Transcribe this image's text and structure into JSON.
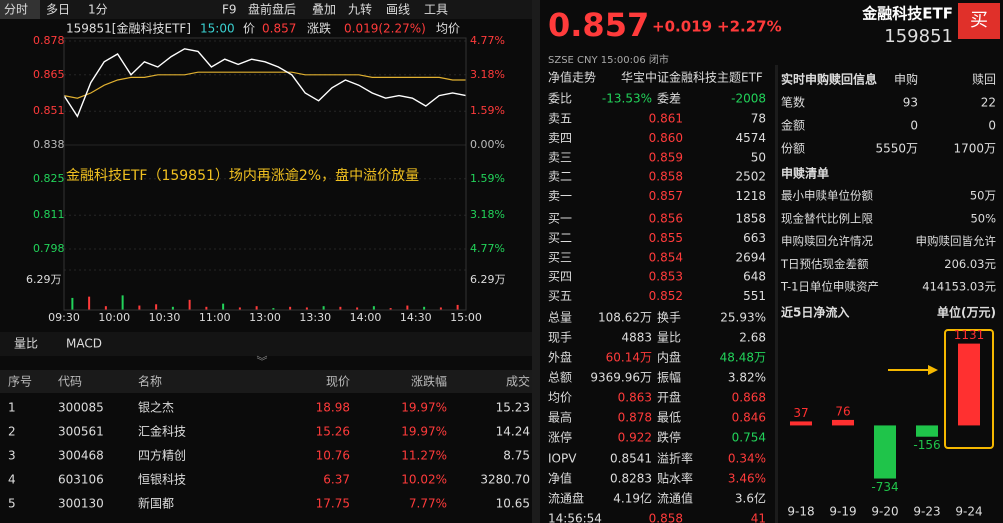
{
  "toolbar": [
    "分时",
    "多日",
    "1分",
    "F9",
    "盘前盘后",
    "叠加",
    "九转",
    "画线",
    "工具"
  ],
  "chart": {
    "type": "line",
    "code_name": "159851[金融科技ETF]",
    "time": "15:00",
    "price_label": "价",
    "price": "0.857",
    "change_label": "涨跌",
    "change": "0.019(2.27%)",
    "avg_label": "均价",
    "ylim": [
      0.798,
      0.878
    ],
    "yticks": [
      0.878,
      0.865,
      0.851,
      0.838,
      0.825,
      0.811,
      0.798
    ],
    "pct_ticks": [
      "4.77%",
      "3.18%",
      "1.59%",
      "0.00%",
      "1.59%",
      "3.18%",
      "4.77%"
    ],
    "volume_max": {
      "value": 6.29,
      "label": "6.29万"
    },
    "xticks": [
      "09:30",
      "10:00",
      "10:30",
      "11:00",
      "13:00",
      "13:30",
      "14:00",
      "14:30",
      "15:00"
    ],
    "annotation": "金融科技ETF（159851）场内再涨逾2%，盘中溢价放量",
    "price_series": [
      0.857,
      0.849,
      0.862,
      0.87,
      0.873,
      0.865,
      0.87,
      0.868,
      0.872,
      0.875,
      0.874,
      0.868,
      0.871,
      0.869,
      0.871,
      0.87,
      0.868,
      0.865,
      0.858,
      0.855,
      0.86,
      0.863,
      0.861,
      0.858,
      0.856,
      0.857,
      0.856,
      0.853,
      0.857,
      0.858,
      0.857
    ],
    "avg_series": [
      0.857,
      0.856,
      0.858,
      0.861,
      0.863,
      0.864,
      0.864,
      0.865,
      0.865,
      0.865,
      0.866,
      0.866,
      0.866,
      0.866,
      0.866,
      0.866,
      0.866,
      0.866,
      0.865,
      0.865,
      0.865,
      0.865,
      0.865,
      0.864,
      0.864,
      0.864,
      0.864,
      0.864,
      0.864,
      0.863,
      0.863
    ],
    "volume": [
      1.9,
      2.1,
      0.6,
      2.3,
      0.7,
      0.9,
      0.5,
      1.6,
      0.5,
      1.0,
      0.4,
      0.6,
      0.3,
      0.5,
      0.4,
      0.6,
      0.5,
      0.4,
      0.6,
      0.3,
      0.7,
      0.5,
      0.4,
      0.8
    ]
  },
  "tabs": [
    "量比",
    "MACD"
  ],
  "stock_table": {
    "headers": [
      "序号",
      "代码",
      "名称",
      "现价",
      "涨跌幅",
      "成交"
    ],
    "rows": [
      [
        "1",
        "300085",
        "银之杰",
        "18.98",
        "19.97%",
        "15.23"
      ],
      [
        "2",
        "300561",
        "汇金科技",
        "15.26",
        "19.97%",
        "14.24"
      ],
      [
        "3",
        "300468",
        "四方精创",
        "10.76",
        "11.27%",
        "8.75"
      ],
      [
        "4",
        "603106",
        "恒银科技",
        "6.37",
        "10.02%",
        "3280.70"
      ],
      [
        "5",
        "300130",
        "新国都",
        "17.75",
        "7.77%",
        "10.65"
      ]
    ]
  },
  "quote": {
    "price": "0.857",
    "change": "+0.019",
    "pct": "+2.27%",
    "name": "金融科技ETF",
    "code": "159851",
    "buy": "买",
    "status": "SZSE  CNY  15:00:06  闭市",
    "tabs": [
      "净值走势",
      "华宝中证金融科技主题ETF"
    ],
    "ratio": [
      "委比",
      "-13.53%",
      "委差",
      "-2008"
    ]
  },
  "book": [
    [
      "卖五",
      "0.861",
      "78"
    ],
    [
      "卖四",
      "0.860",
      "4574"
    ],
    [
      "卖三",
      "0.859",
      "50"
    ],
    [
      "卖二",
      "0.858",
      "2502"
    ],
    [
      "卖一",
      "0.857",
      "1218"
    ],
    [
      "买一",
      "0.856",
      "1858"
    ],
    [
      "买二",
      "0.855",
      "663"
    ],
    [
      "买三",
      "0.854",
      "2694"
    ],
    [
      "买四",
      "0.853",
      "648"
    ],
    [
      "买五",
      "0.852",
      "551"
    ]
  ],
  "stats": [
    {
      "cells": [
        "总量",
        "108.62万",
        "换手",
        "25.93%"
      ],
      "colors": [
        "#ddd",
        "#ddd"
      ]
    },
    {
      "cells": [
        "现手",
        "4883",
        "量比",
        "2.68"
      ],
      "colors": [
        "#ddd",
        "#ddd"
      ]
    },
    {
      "cells": [
        "外盘",
        "60.14万",
        "内盘",
        "48.48万"
      ],
      "colors": [
        "#ff3b3b",
        "#22d35a"
      ]
    },
    {
      "cells": [
        "总额",
        "9369.96万",
        "振幅",
        "3.82%"
      ],
      "colors": [
        "#ddd",
        "#ddd"
      ]
    },
    {
      "cells": [
        "均价",
        "0.863",
        "开盘",
        "0.868"
      ],
      "colors": [
        "#ff3b3b",
        "#ff3b3b"
      ]
    },
    {
      "cells": [
        "最高",
        "0.878",
        "最低",
        "0.846"
      ],
      "colors": [
        "#ff3b3b",
        "#ff3b3b"
      ]
    },
    {
      "cells": [
        "涨停",
        "0.922",
        "跌停",
        "0.754"
      ],
      "colors": [
        "#ff3b3b",
        "#22d35a"
      ]
    },
    {
      "cells": [
        "IOPV",
        "0.8541",
        "溢折率",
        "0.34%"
      ],
      "colors": [
        "#ddd",
        "#ff3b3b"
      ]
    },
    {
      "cells": [
        "净值",
        "0.8283",
        "贴水率",
        "3.46%"
      ],
      "colors": [
        "#ddd",
        "#ff3b3b"
      ]
    },
    {
      "cells": [
        "流通盘",
        "4.19亿",
        "流通值",
        "3.6亿"
      ],
      "colors": [
        "#ddd",
        "#ddd"
      ]
    }
  ],
  "tick_row": [
    "14:56:54",
    "0.858",
    "41"
  ],
  "subscription": {
    "headers": [
      "实时申购赎回信息",
      "申购",
      "赎回"
    ],
    "rows": [
      [
        "笔数",
        "93",
        "22"
      ],
      [
        "金额",
        "0",
        "0"
      ],
      [
        "份额",
        "5550万",
        "1700万"
      ]
    ],
    "list_title": "申赎清单",
    "list": [
      [
        "最小申赎单位份额",
        "50万"
      ],
      [
        "现金替代比例上限",
        "50%"
      ],
      [
        "申购赎回允许情况",
        "申购赎回皆允许"
      ],
      [
        "T日预估现金差额",
        "206.03元"
      ],
      [
        "T-1日单位申赎资产",
        "414153.03元"
      ]
    ]
  },
  "flow": {
    "type": "bar",
    "title": "近5日净流入",
    "unit": "单位(万元)",
    "categories": [
      "9-18",
      "9-19",
      "9-20",
      "9-23",
      "9-24"
    ],
    "values": [
      37,
      76,
      -734,
      -156,
      1131
    ],
    "positive_color": "#ff3030",
    "negative_color": "#1fc44a",
    "ylim": [
      -1100,
      1250
    ]
  }
}
